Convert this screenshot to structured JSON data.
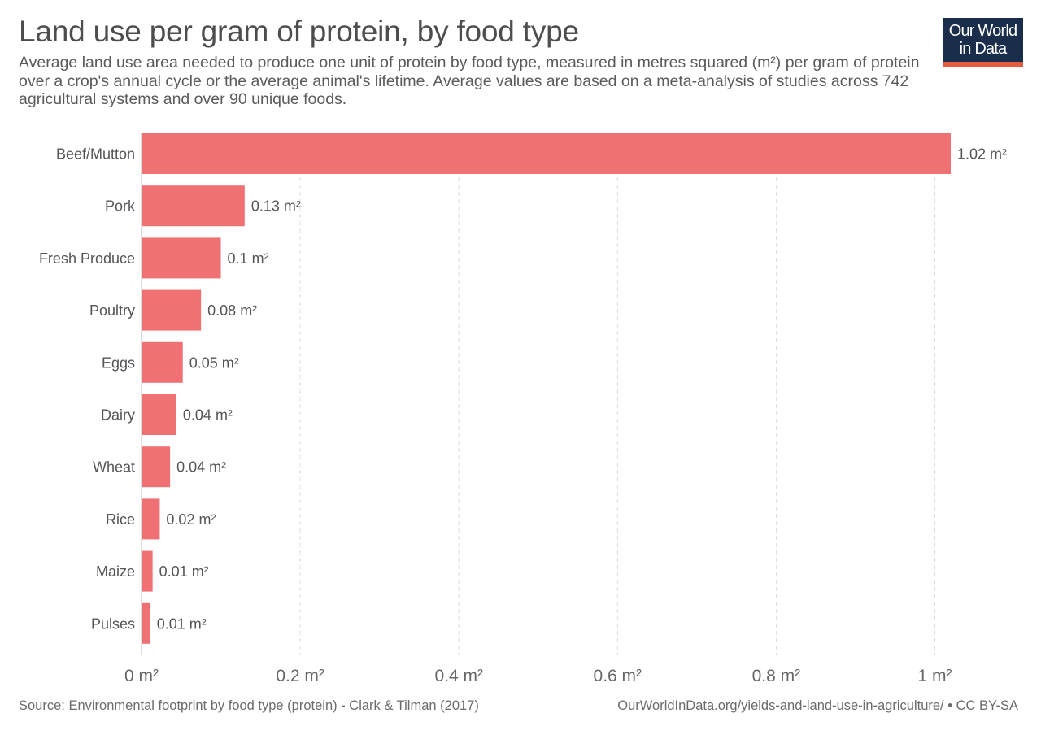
{
  "logo": {
    "line1": "Our World",
    "line2": "in Data"
  },
  "footer": {
    "source": "Source: Environmental footprint by food type (protein) - Clark & Tilman (2017)",
    "credit": "OurWorldInData.org/yields-and-land-use-in-agriculture/ • CC BY-SA"
  },
  "colors": {
    "bar": "#f07174",
    "grid": "#dddddd",
    "axis": "#bbbbbb"
  },
  "chart_data": {
    "type": "bar",
    "orientation": "horizontal",
    "title": "Land use per gram of protein, by food type",
    "subtitle": "Average land use area needed to produce one unit of protein by food type, measured in metres squared (m²) per gram of protein over a crop's annual cycle or the average animal's lifetime. Average values are based on a meta-analysis of studies across 742 agricultural systems and over 90 unique foods.",
    "categories": [
      "Beef/Mutton",
      "Pork",
      "Fresh Produce",
      "Poultry",
      "Eggs",
      "Dairy",
      "Wheat",
      "Rice",
      "Maize",
      "Pulses"
    ],
    "values": [
      1.02,
      0.13,
      0.1,
      0.075,
      0.052,
      0.044,
      0.036,
      0.023,
      0.014,
      0.011
    ],
    "value_labels": [
      "1.02 m²",
      "0.13 m²",
      "0.1 m²",
      "0.08 m²",
      "0.05 m²",
      "0.04 m²",
      "0.04 m²",
      "0.02 m²",
      "0.01 m²",
      "0.01 m²"
    ],
    "xlim": [
      0,
      1.02
    ],
    "xticks": [
      0,
      0.2,
      0.4,
      0.6,
      0.8,
      1
    ],
    "xtick_labels": [
      "0 m²",
      "0.2 m²",
      "0.4 m²",
      "0.6 m²",
      "0.8 m²",
      "1 m²"
    ],
    "grid": true,
    "legend": "none"
  }
}
